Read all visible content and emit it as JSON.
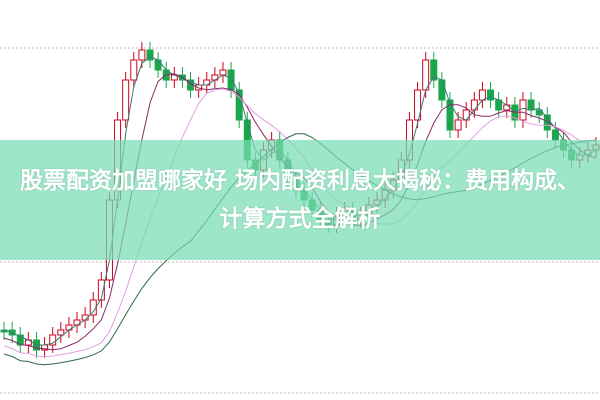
{
  "article": {
    "title": "股票配资加盟哪家好 场内配资利息大揭秘：费用构成、计算方式全解析"
  },
  "colors": {
    "up_candle": "#d0021b",
    "down_candle": "#1aa64a",
    "banner": "#78dcb4",
    "ma_lines": [
      "#3a7a7a",
      "#8a2a6a",
      "#e0a0e0",
      "#2a6a4a"
    ]
  }
}
